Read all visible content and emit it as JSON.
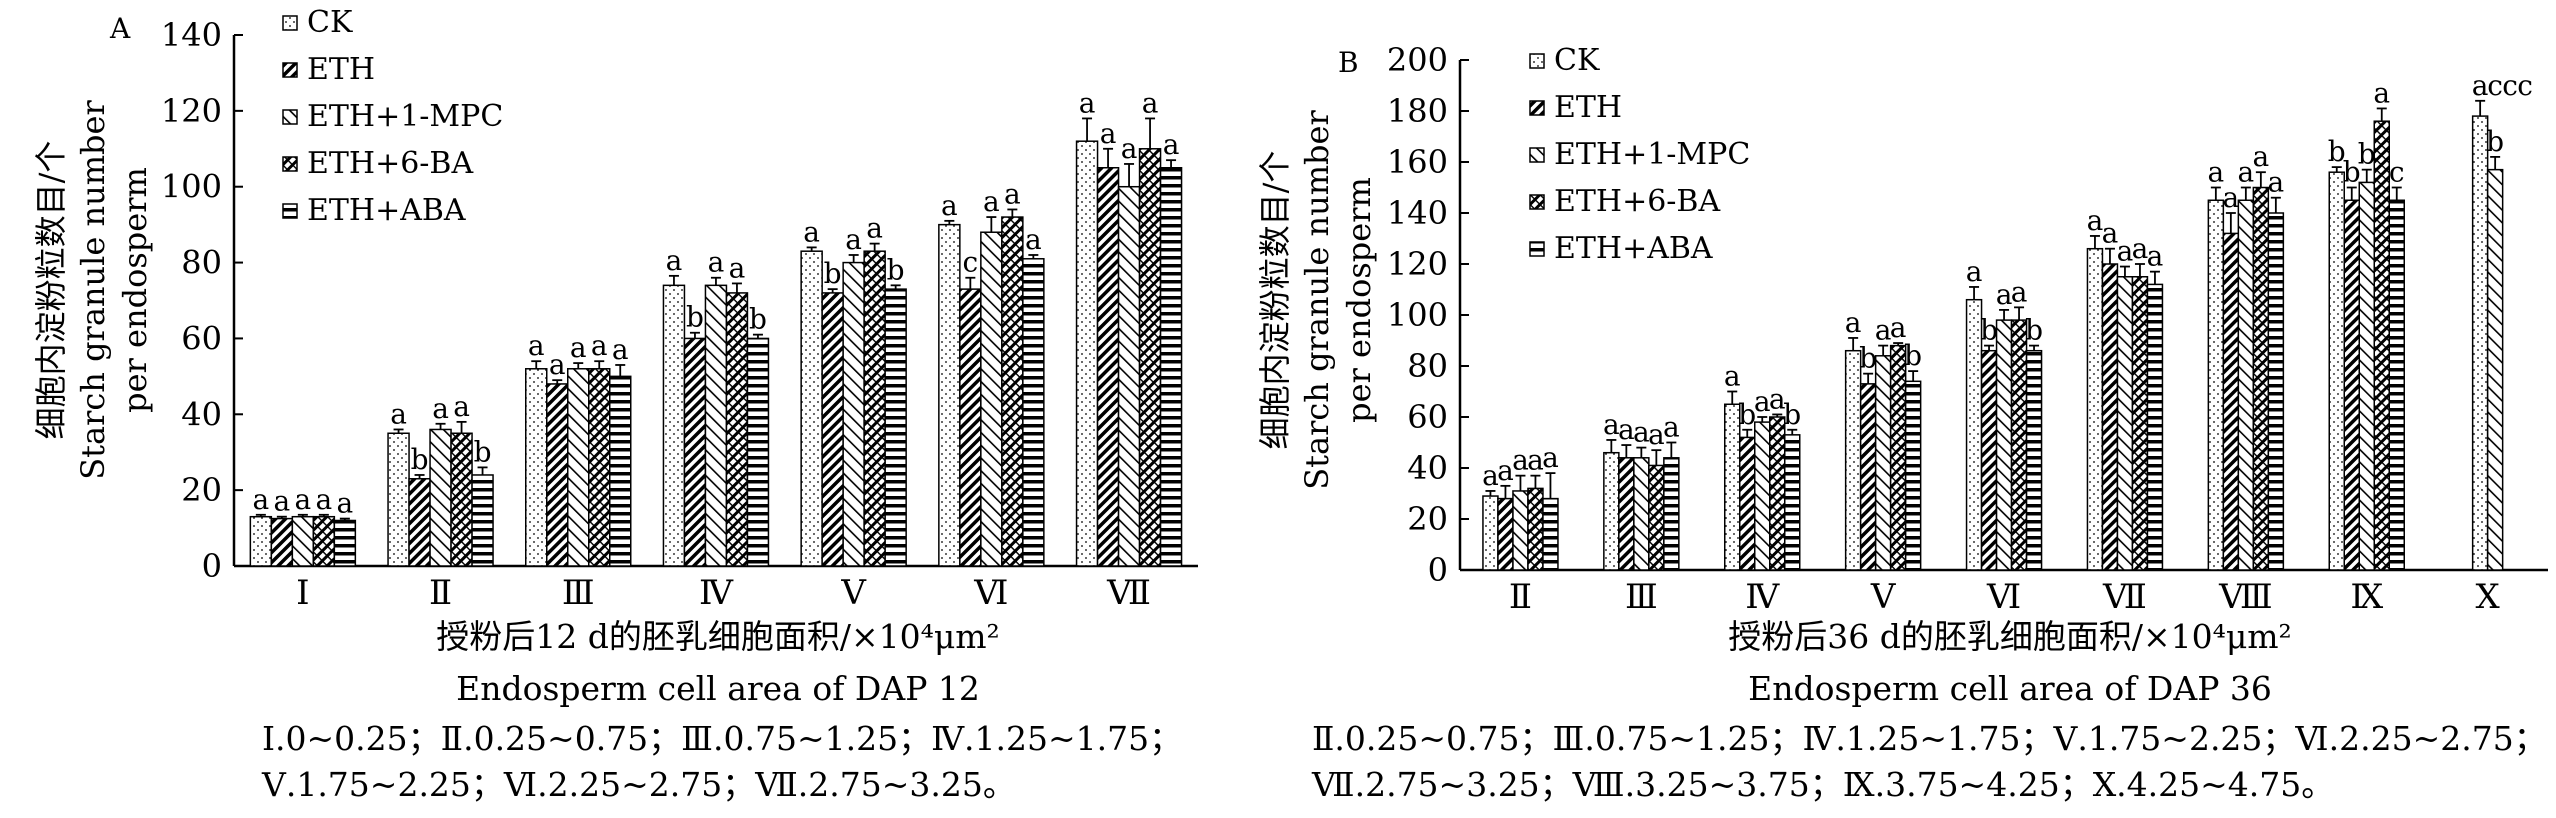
{
  "chart_data": [
    {
      "panel": "A",
      "type": "bar",
      "ylabel_cn": "细胞内淀粉粒数目/个",
      "ylabel_en_1": "Starch granule number",
      "ylabel_en_2": "per endosperm",
      "xlabel_cn": "授粉后12 d的胚乳细胞面积/×10⁴μm²",
      "xlabel_en": "Endosperm cell area of DAP 12",
      "ylim": [
        0,
        140
      ],
      "yticks": [
        "0",
        "20",
        "40",
        "60",
        "80",
        "100",
        "120",
        "140"
      ],
      "categories": [
        "Ⅰ",
        "Ⅱ",
        "Ⅲ",
        "Ⅳ",
        "Ⅴ",
        "Ⅵ",
        "Ⅶ"
      ],
      "series": [
        {
          "name": "CK",
          "values": [
            13,
            35,
            52,
            74,
            83,
            90,
            112
          ],
          "errors": [
            0.5,
            1,
            2,
            2.5,
            1,
            1,
            6
          ],
          "letters": [
            "a",
            "a",
            "a",
            "a",
            "a",
            "a",
            "a"
          ]
        },
        {
          "name": "ETH",
          "values": [
            12.5,
            23,
            48,
            60,
            72,
            73,
            105
          ],
          "errors": [
            0.5,
            1,
            1,
            1.5,
            1,
            3,
            5
          ],
          "letters": [
            "a",
            "b",
            "a",
            "b",
            "b",
            "c",
            "a"
          ]
        },
        {
          "name": "ETH+1-MPC",
          "values": [
            13,
            36,
            52,
            74,
            80,
            88,
            100
          ],
          "errors": [
            0.5,
            1.5,
            1.5,
            2,
            2,
            4,
            6
          ],
          "letters": [
            "a",
            "a",
            "a",
            "a",
            "a",
            "a",
            "a"
          ]
        },
        {
          "name": "ETH+6-BA",
          "values": [
            13,
            35,
            52,
            72,
            83,
            92,
            110
          ],
          "errors": [
            0.5,
            3,
            2,
            2.5,
            2,
            2,
            8
          ],
          "letters": [
            "a",
            "a",
            "a",
            "a",
            "a",
            "a",
            "a"
          ]
        },
        {
          "name": "ETH+ABA",
          "values": [
            12,
            24,
            50,
            60,
            73,
            81,
            105
          ],
          "errors": [
            0.5,
            2,
            3,
            1,
            1,
            1,
            2
          ],
          "letters": [
            "a",
            "b",
            "a",
            "b",
            "b",
            "a",
            "a"
          ]
        }
      ],
      "notes": [
        "Ⅰ.0~0.25；Ⅱ.0.25~0.75；Ⅲ.0.75~1.25；Ⅳ.1.25~1.75；",
        "Ⅴ.1.75~2.25；Ⅵ.2.25~2.75；Ⅶ.2.75~3.25。"
      ]
    },
    {
      "panel": "B",
      "type": "bar",
      "ylabel_cn": "细胞内淀粉粒数目/个",
      "ylabel_en_1": "Starch granule number",
      "ylabel_en_2": "per endosperm",
      "xlabel_cn": "授粉后36 d的胚乳细胞面积/×10⁴μm²",
      "xlabel_en": "Endosperm cell area of DAP 36",
      "ylim": [
        0,
        200
      ],
      "yticks": [
        "0",
        "20",
        "40",
        "60",
        "80",
        "100",
        "120",
        "140",
        "160",
        "180",
        "200"
      ],
      "categories": [
        "Ⅱ",
        "Ⅲ",
        "Ⅳ",
        "Ⅴ",
        "Ⅵ",
        "Ⅶ",
        "Ⅷ",
        "Ⅸ",
        "Ⅹ"
      ],
      "series": [
        {
          "name": "CK",
          "values": [
            29,
            46,
            65,
            86,
            106,
            126,
            145,
            156,
            178
          ],
          "errors": [
            2,
            5,
            5,
            5,
            5,
            5,
            5,
            2,
            6
          ],
          "letters": [
            "a",
            "a",
            "a",
            "a",
            "a",
            "a",
            "a",
            "b",
            "a"
          ]
        },
        {
          "name": "ETH",
          "values": [
            28,
            44,
            52,
            73,
            86,
            120,
            132,
            145,
            null
          ],
          "errors": [
            5,
            5,
            3,
            4,
            2,
            6,
            8,
            5,
            null
          ],
          "letters": [
            "a",
            "a",
            "b",
            "b",
            "b",
            "a",
            "a",
            "b",
            "c"
          ]
        },
        {
          "name": "ETH+1-MPC",
          "values": [
            31,
            44,
            58,
            84,
            98,
            115,
            145,
            152,
            157
          ],
          "errors": [
            6,
            4,
            2,
            4,
            4,
            4,
            5,
            5,
            5
          ],
          "letters": [
            "a",
            "a",
            "a",
            "a",
            "a",
            "a",
            "a",
            "b",
            "b"
          ]
        },
        {
          "name": "ETH+6-BA",
          "values": [
            32,
            41,
            60,
            88,
            98,
            115,
            150,
            176,
            null
          ],
          "errors": [
            5,
            6,
            1,
            1,
            5,
            5,
            6,
            5,
            null
          ],
          "letters": [
            "a",
            "a",
            "a",
            "a",
            "a",
            "a",
            "a",
            "a",
            "c"
          ]
        },
        {
          "name": "ETH+ABA",
          "values": [
            28,
            44,
            53,
            74,
            86,
            112,
            140,
            145,
            null
          ],
          "errors": [
            10,
            6,
            2,
            4,
            2,
            5,
            6,
            5,
            null
          ],
          "letters": [
            "a",
            "a",
            "b",
            "b",
            "b",
            "a",
            "a",
            "c",
            "c"
          ]
        }
      ],
      "notes": [
        "Ⅱ.0.25~0.75；Ⅲ.0.75~1.25；Ⅳ.1.25~1.75；Ⅴ.1.75~2.25；Ⅵ.2.25~2.75；",
        "Ⅶ.2.75~3.25；Ⅷ.3.25~3.75；Ⅸ.3.75~4.25；Ⅹ.4.25~4.75。"
      ]
    }
  ]
}
